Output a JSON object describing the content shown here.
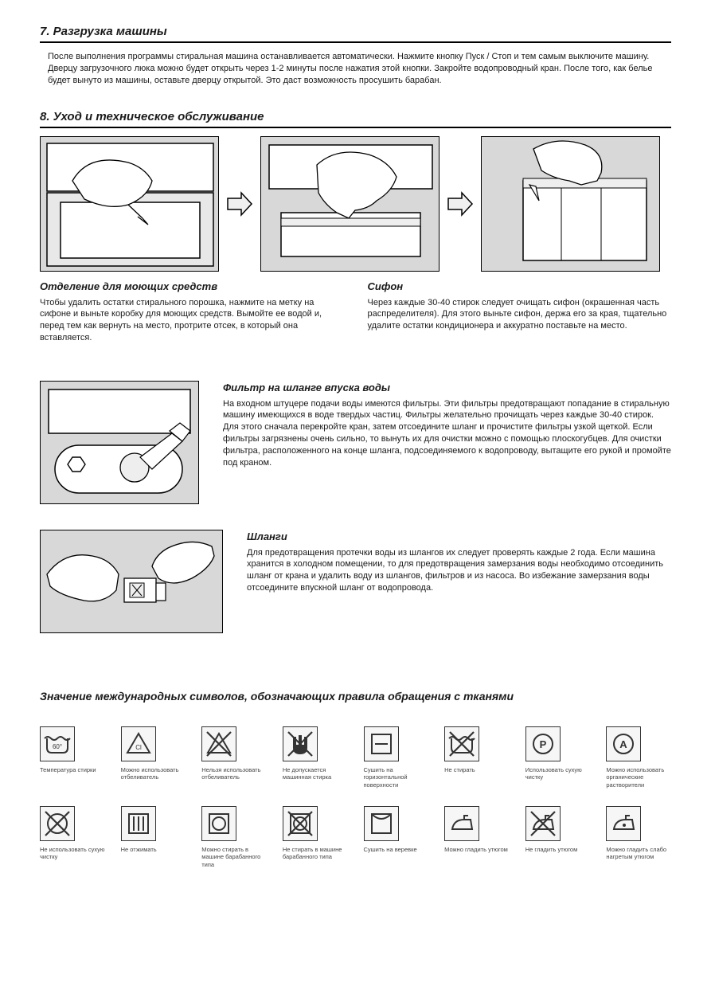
{
  "section7": {
    "title": "7. Разгрузка машины",
    "body": "После выполнения программы стиральная машина останавливается автоматически. Нажмите кнопку Пуск / Стоп и тем самым выключите машину. Дверцу загрузочного люка можно будет открыть через 1-2 минуты после нажатия этой кнопки. Закройте водопроводный кран. После того, как белье будет вынуто из машины, оставьте дверцу открытой. Это даст возможность просушить барабан."
  },
  "section8": {
    "title": "8. Уход и техническое обслуживание",
    "detergent": {
      "heading": "Отделение для моющих средств",
      "body": "Чтобы удалить остатки стирального порошка, нажмите на метку на сифоне и выньте коробку для моющих средств. Вымойте ее водой и, перед тем как вернуть на место, протрите отсек, в который она вставляется."
    },
    "siphon": {
      "heading": "Сифон",
      "body": "Через каждые 30-40 стирок следует очищать сифон (окрашенная часть распределителя). Для этого выньте сифон, держа его за края, тщательно удалите остатки кондиционера и аккуратно поставьте на место."
    },
    "inletFilter": {
      "heading": "Фильтр на шланге впуска воды",
      "body": "На входном штуцере подачи воды имеются фильтры. Эти фильтры предотвращают попадание в стиральную машину имеющихся в воде твердых частиц. Фильтры желательно прочищать через каждые 30-40 стирок. Для этого сначала перекройте кран, затем отсоедините шланг и прочистите фильтры узкой щеткой. Если фильтры загрязнены очень сильно, то вынуть их для очистки можно с помощью плоскогубцев. Для очистки фильтра, расположенного на конце шланга, подсоединяемого к водопроводу, вытащите его рукой и промойте под краном."
    },
    "hoses": {
      "heading": "Шланги",
      "body": "Для предотвращения протечки воды из шлангов их следует проверять каждые 2 года. Если машина хранится в холодном помещении, то для предотвращения замерзания воды необходимо отсоединить шланг от крана и удалить воду из шлангов, фильтров и из насоса. Во избежание замерзания воды отсоедините впускной шланг от водопровода."
    }
  },
  "symbols": {
    "title": "Значение международных символов, обозначающих правила обращения с тканями",
    "items": [
      {
        "type": "wash60",
        "label": "Температура стирки"
      },
      {
        "type": "bleachCl",
        "label": "Можно использовать отбеливатель"
      },
      {
        "type": "noBleach",
        "label": "Нельзя использовать отбеливатель"
      },
      {
        "type": "noHand",
        "label": "Не допускается машинная стирка"
      },
      {
        "type": "flatDry",
        "label": "Сушить на горизонтальной поверхности"
      },
      {
        "type": "noWash",
        "label": "Не стирать"
      },
      {
        "type": "circleP",
        "label": "Использовать сухую чистку"
      },
      {
        "type": "circleA",
        "label": "Можно использовать органические растворители"
      },
      {
        "type": "noCircle",
        "label": "Не использовать сухую чистку"
      },
      {
        "type": "drip",
        "label": "Не отжимать"
      },
      {
        "type": "tumble",
        "label": "Можно стирать в машине барабанного типа"
      },
      {
        "type": "noTumble",
        "label": "Не стирать в машине барабанного типа"
      },
      {
        "type": "lineDry",
        "label": "Сушить на веревке"
      },
      {
        "type": "iron",
        "label": "Можно гладить утюгом"
      },
      {
        "type": "noIron",
        "label": "Не гладить утюгом"
      },
      {
        "type": "ironDot",
        "label": "Можно гладить слабо нагретым утюгом"
      }
    ]
  },
  "style": {
    "figBorder": "#000000",
    "figBg": "#d8d8d8",
    "iconBorder": "#333333",
    "iconBg": "#f6f6f6",
    "labelColor": "#444444",
    "labelFontSize": 7.5,
    "bodyFontSize": 11,
    "headingFontSize": 15,
    "subHeadingFontSize": 13
  }
}
